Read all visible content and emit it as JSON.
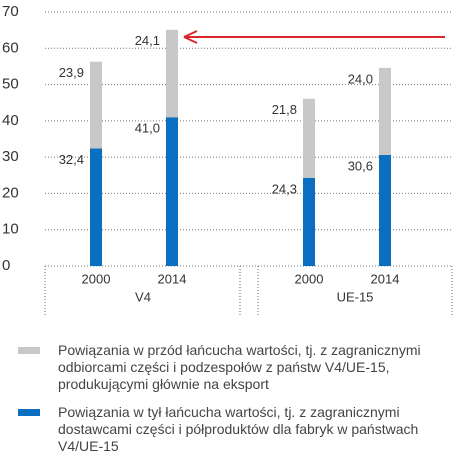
{
  "chart_data": {
    "type": "stacked_bar",
    "categories": [
      "2000",
      "2014",
      "2000",
      "2014"
    ],
    "groups": [
      "V4",
      "UE-15"
    ],
    "series": [
      {
        "name": "Powiązania w przód łańcucha wartości, tj. z zagranicznymi odbiorcami części i podzespołów z państw V4/UE-15, produkującymi głównie na eksport",
        "color": "#c8c8c8",
        "values": [
          23.9,
          24.1,
          21.8,
          24.0
        ],
        "value_labels": [
          "23,9",
          "24,1",
          "21,8",
          "24,0"
        ]
      },
      {
        "name": "Powiązania w tył łańcucha wartości, tj. z zagranicznymi dostawcami części i półproduktów dla fabryk w państwach V4/UE-15",
        "color": "#0b6fc1",
        "values": [
          32.4,
          41.0,
          24.3,
          30.6
        ],
        "value_labels": [
          "32,4",
          "41,0",
          "24,3",
          "30,6"
        ]
      }
    ],
    "ylim": [
      0,
      70
    ],
    "yticks": [
      0,
      10,
      20,
      30,
      40,
      50,
      60,
      70
    ],
    "grid": true
  }
}
